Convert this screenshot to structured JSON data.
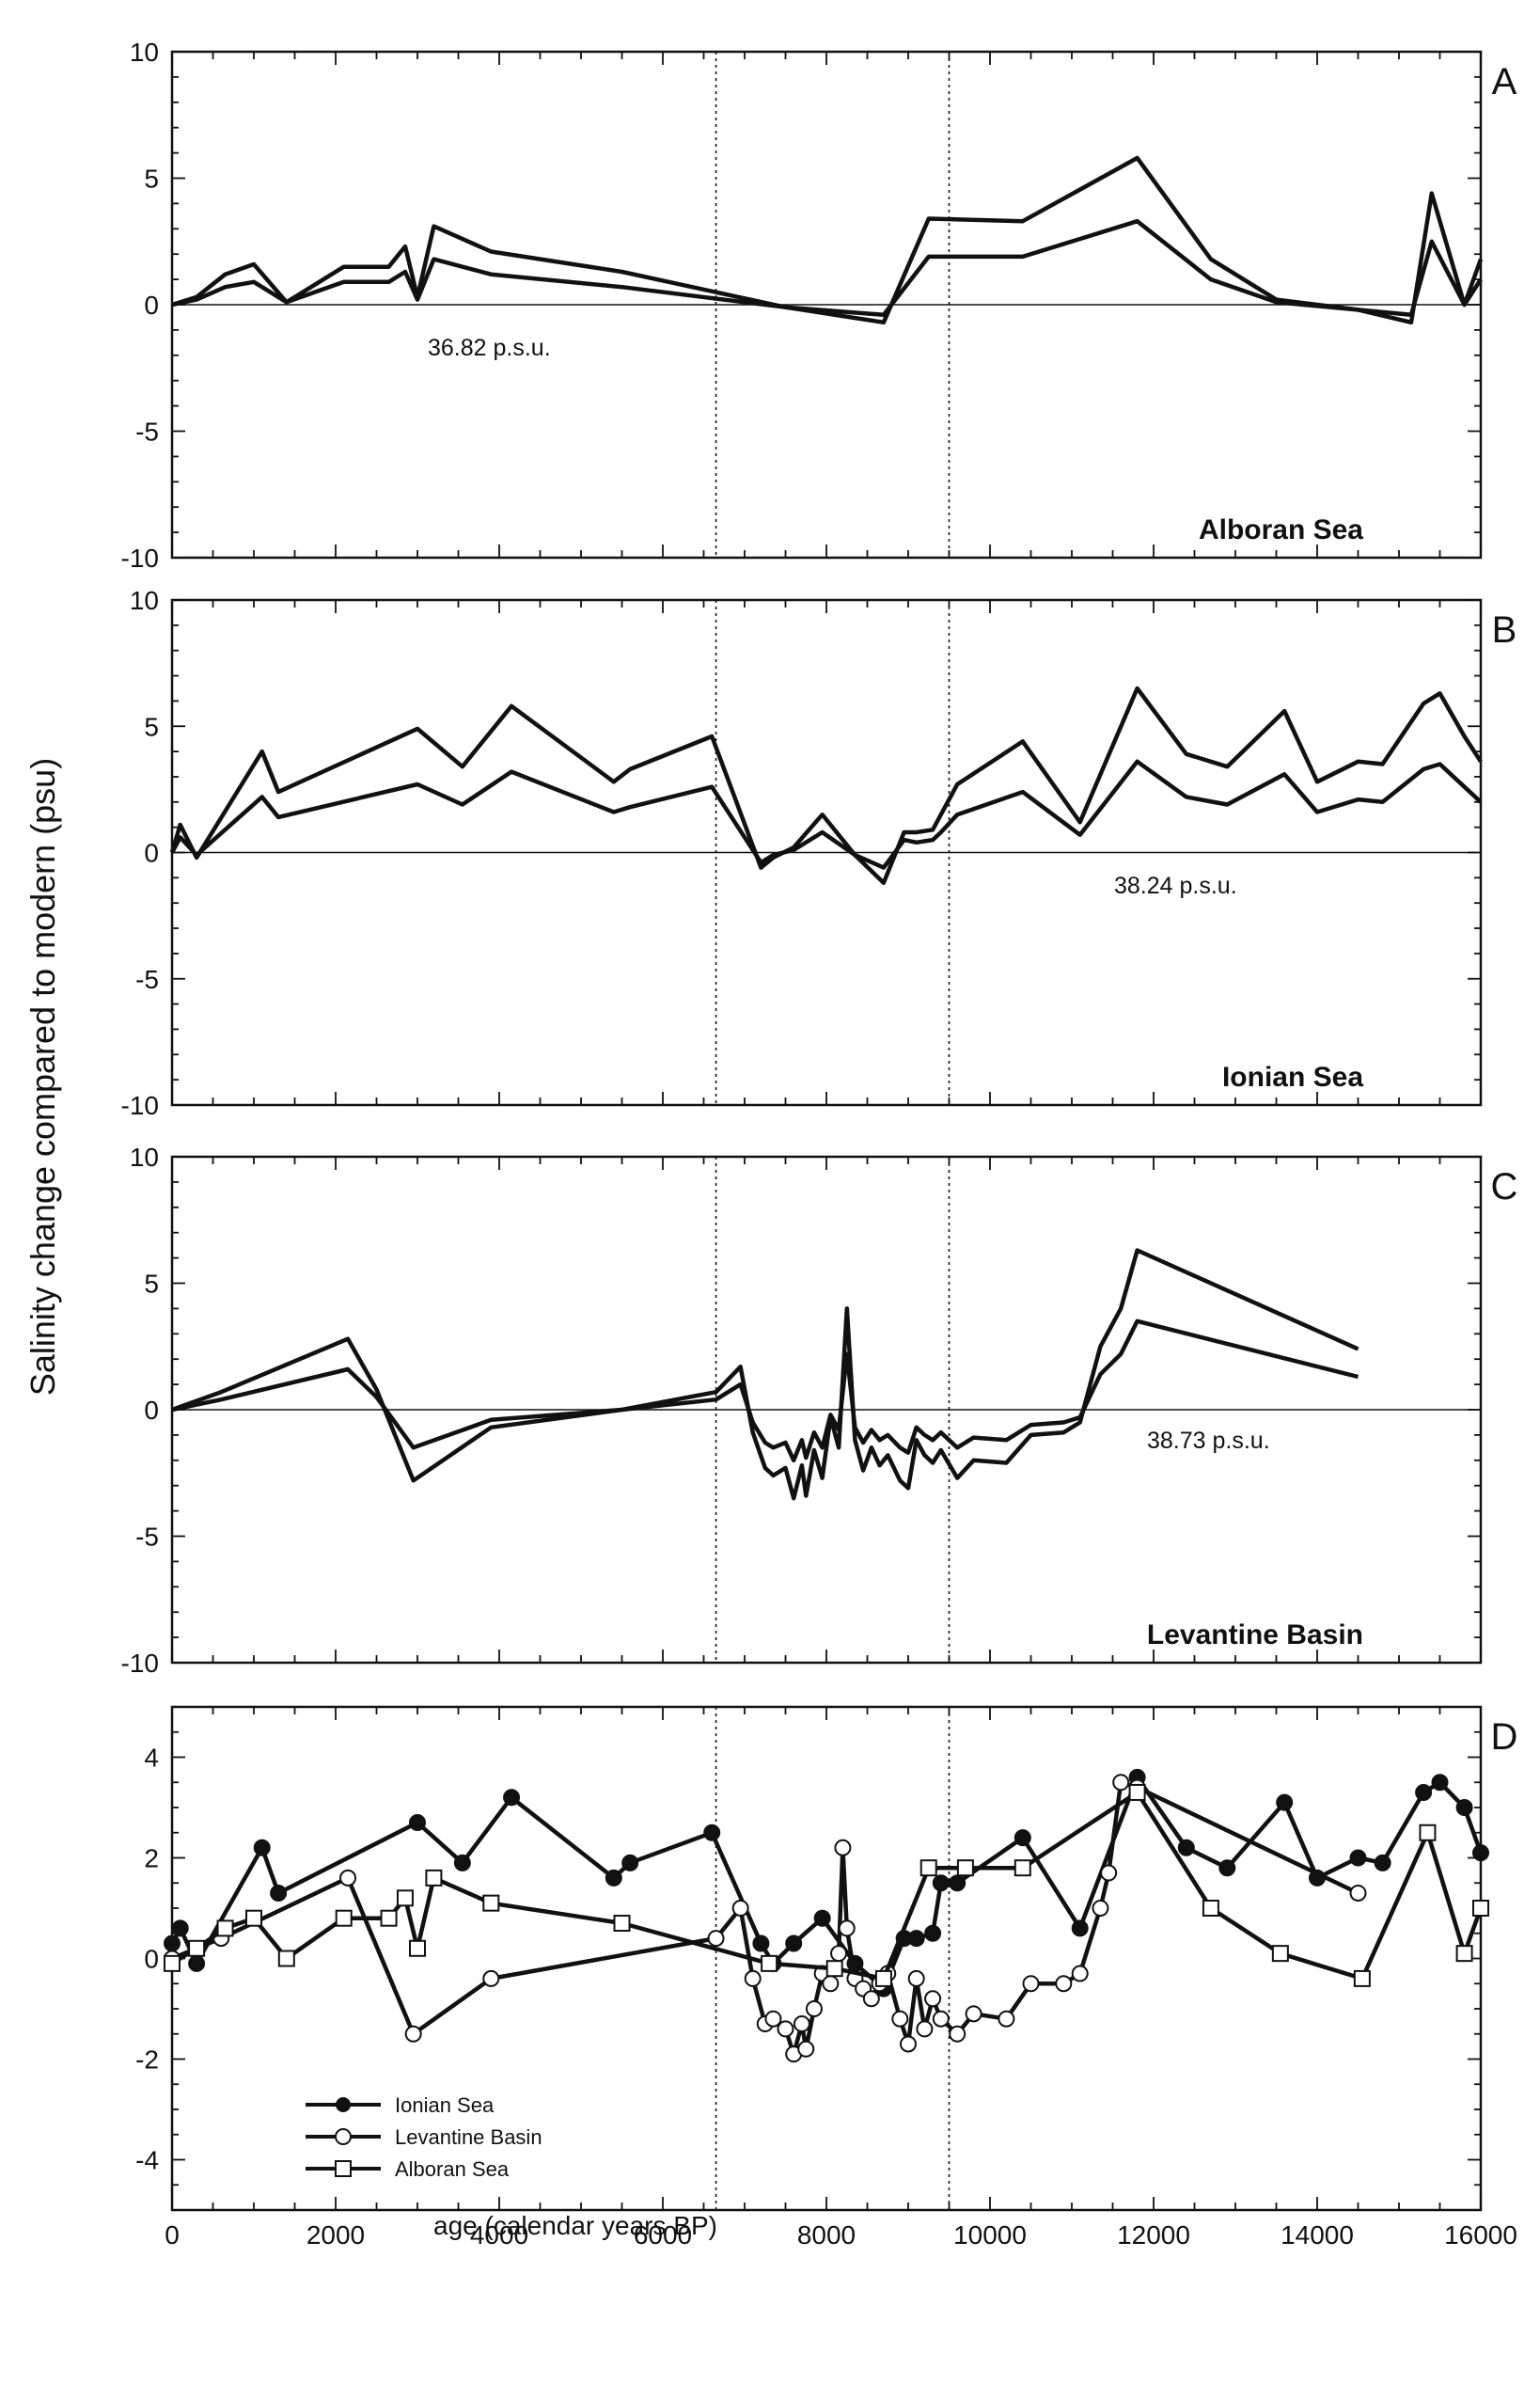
{
  "figure": {
    "ylabel": "Salinity change compared to modern (psu)",
    "xlabel": "age (calendar years BP)"
  },
  "colors": {
    "line": "#111111",
    "background": "#ffffff"
  },
  "chart_data": [
    {
      "type": "line",
      "panel_letter": "A",
      "region_label": "Alboran Sea",
      "annotation": "36.82 p.s.u.",
      "xlim": [
        0,
        16000
      ],
      "ylim": [
        -10,
        10
      ],
      "yticks": [
        10,
        5,
        0,
        -5,
        -10
      ],
      "xticks": [
        0,
        2000,
        4000,
        6000,
        8000,
        10000,
        12000,
        14000,
        16000
      ],
      "show_xtick_labels": false,
      "zero_line": true,
      "vlines": [
        6650,
        9500
      ],
      "series": [
        {
          "x": [
            0,
            300,
            650,
            1000,
            1400,
            2100,
            2650,
            2850,
            3000,
            3200,
            3900,
            5500,
            7500,
            8700,
            9250,
            10400,
            11800,
            12700,
            13500,
            14500,
            15150,
            15400,
            15800,
            16000
          ],
          "y": [
            0,
            0.3,
            1.2,
            1.6,
            0.1,
            1.5,
            1.5,
            2.3,
            0.3,
            3.1,
            2.1,
            1.3,
            -0.1,
            -0.7,
            3.4,
            3.3,
            5.8,
            1.8,
            0.2,
            -0.2,
            -0.7,
            4.4,
            0,
            1.8
          ]
        },
        {
          "x": [
            0,
            300,
            650,
            1000,
            1400,
            2100,
            2650,
            2850,
            3000,
            3200,
            3900,
            5500,
            7500,
            8700,
            9250,
            10400,
            11800,
            12700,
            13500,
            14500,
            15150,
            15400,
            15800,
            16000
          ],
          "y": [
            0,
            0.2,
            0.7,
            0.9,
            0.1,
            0.9,
            0.9,
            1.3,
            0.2,
            1.8,
            1.2,
            0.7,
            -0.1,
            -0.4,
            1.9,
            1.9,
            3.3,
            1.0,
            0.1,
            -0.2,
            -0.4,
            2.5,
            0,
            1.0
          ]
        }
      ]
    },
    {
      "type": "line",
      "panel_letter": "B",
      "region_label": "Ionian Sea",
      "annotation": "38.24 p.s.u.",
      "xlim": [
        0,
        16000
      ],
      "ylim": [
        -10,
        10
      ],
      "yticks": [
        10,
        5,
        0,
        -5,
        -10
      ],
      "xticks": [
        0,
        2000,
        4000,
        6000,
        8000,
        10000,
        12000,
        14000,
        16000
      ],
      "show_xtick_labels": false,
      "zero_line": true,
      "vlines": [
        6650,
        9500
      ],
      "series": [
        {
          "x": [
            0,
            100,
            300,
            1100,
            1300,
            3000,
            3550,
            4150,
            5400,
            5600,
            6600,
            7200,
            7350,
            7600,
            7950,
            8350,
            8700,
            8950,
            9100,
            9300,
            9400,
            9600,
            10400,
            11100,
            11800,
            12400,
            12900,
            13600,
            14000,
            14500,
            14800,
            15300,
            15500,
            15800,
            16000
          ],
          "y": [
            0,
            1.1,
            -0.2,
            4.0,
            2.4,
            4.9,
            3.4,
            5.8,
            2.8,
            3.3,
            4.6,
            -0.6,
            -0.2,
            0.2,
            1.5,
            -0.1,
            -1.2,
            0.8,
            0.8,
            0.9,
            1.5,
            2.7,
            4.4,
            1.2,
            6.5,
            3.9,
            3.4,
            5.6,
            2.8,
            3.6,
            3.5,
            5.9,
            6.3,
            4.6,
            3.6
          ]
        },
        {
          "x": [
            0,
            100,
            300,
            1100,
            1300,
            3000,
            3550,
            4150,
            5400,
            5600,
            6600,
            7200,
            7350,
            7600,
            7950,
            8350,
            8700,
            8950,
            9100,
            9300,
            9400,
            9600,
            10400,
            11100,
            11800,
            12400,
            12900,
            13600,
            14000,
            14500,
            14800,
            15300,
            15500,
            15800,
            16000
          ],
          "y": [
            0,
            0.6,
            -0.1,
            2.2,
            1.4,
            2.7,
            1.9,
            3.2,
            1.6,
            1.8,
            2.6,
            -0.4,
            -0.1,
            0.1,
            0.8,
            -0.1,
            -0.6,
            0.5,
            0.4,
            0.5,
            0.8,
            1.5,
            2.4,
            0.7,
            3.6,
            2.2,
            1.9,
            3.1,
            1.6,
            2.1,
            2.0,
            3.3,
            3.5,
            2.6,
            2.0
          ]
        }
      ]
    },
    {
      "type": "line",
      "panel_letter": "C",
      "region_label": "Levantine Basin",
      "annotation": "38.73 p.s.u.",
      "xlim": [
        0,
        16000
      ],
      "ylim": [
        -10,
        10
      ],
      "yticks": [
        10,
        5,
        0,
        -5,
        -10
      ],
      "xticks": [
        0,
        2000,
        4000,
        6000,
        8000,
        10000,
        12000,
        14000,
        16000
      ],
      "show_xtick_labels": false,
      "zero_line": true,
      "vlines": [
        6650,
        9500
      ],
      "series": [
        {
          "x": [
            0,
            600,
            2150,
            2500,
            2950,
            3900,
            5500,
            6650,
            6950,
            7100,
            7250,
            7350,
            7500,
            7600,
            7700,
            7750,
            7850,
            7950,
            8050,
            8150,
            8200,
            8250,
            8350,
            8450,
            8550,
            8650,
            8750,
            8900,
            9000,
            9100,
            9200,
            9300,
            9400,
            9600,
            9800,
            10200,
            10500,
            10900,
            11100,
            11350,
            11600,
            11800,
            14500
          ],
          "y": [
            0,
            0.7,
            2.8,
            0.8,
            -2.8,
            -0.7,
            0,
            0.7,
            1.7,
            -0.9,
            -2.3,
            -2.6,
            -2.3,
            -3.5,
            -2.2,
            -3.4,
            -1.6,
            -2.7,
            -0.3,
            -1.5,
            1.2,
            4.0,
            -1.2,
            -2.4,
            -1.5,
            -2.2,
            -1.8,
            -2.8,
            -3.1,
            -1.2,
            -1.8,
            -2.1,
            -1.6,
            -2.7,
            -2.0,
            -2.1,
            -1.0,
            -0.9,
            -0.5,
            2.5,
            4.0,
            6.3,
            2.4
          ]
        },
        {
          "x": [
            0,
            600,
            2150,
            2500,
            2950,
            3900,
            5500,
            6650,
            6950,
            7100,
            7250,
            7350,
            7500,
            7600,
            7700,
            7750,
            7850,
            7950,
            8050,
            8150,
            8200,
            8250,
            8350,
            8450,
            8550,
            8650,
            8750,
            8900,
            9000,
            9100,
            9200,
            9300,
            9400,
            9600,
            9800,
            10200,
            10500,
            10900,
            11100,
            11350,
            11600,
            11800,
            14500
          ],
          "y": [
            0,
            0.4,
            1.6,
            0.5,
            -1.5,
            -0.4,
            0,
            0.4,
            1.0,
            -0.5,
            -1.3,
            -1.5,
            -1.3,
            -2.0,
            -1.2,
            -1.9,
            -0.9,
            -1.5,
            -0.2,
            -0.8,
            0.7,
            2.2,
            -0.7,
            -1.3,
            -0.8,
            -1.2,
            -1.0,
            -1.5,
            -1.7,
            -0.7,
            -1.0,
            -1.2,
            -0.9,
            -1.5,
            -1.1,
            -1.2,
            -0.6,
            -0.5,
            -0.3,
            1.4,
            2.2,
            3.5,
            1.3
          ]
        }
      ]
    },
    {
      "type": "line",
      "panel_letter": "D",
      "xlim": [
        0,
        16000
      ],
      "ylim": [
        -5,
        5
      ],
      "yticks": [
        4,
        2,
        0,
        -2,
        -4
      ],
      "xticks": [
        0,
        2000,
        4000,
        6000,
        8000,
        10000,
        12000,
        14000,
        16000
      ],
      "xtick_labels": [
        "0",
        "2000",
        "4000",
        "6000",
        "8000",
        "10000",
        "12000",
        "14000",
        "16000"
      ],
      "show_xtick_labels": true,
      "zero_line": false,
      "vlines": [
        6650,
        9500
      ],
      "series": [
        {
          "name": "Ionian Sea",
          "marker": "filled-circle",
          "x": [
            0,
            100,
            300,
            1100,
            1300,
            3000,
            3550,
            4150,
            5400,
            5600,
            6600,
            7200,
            7350,
            7600,
            7950,
            8350,
            8700,
            8950,
            9100,
            9300,
            9400,
            9600,
            10400,
            11100,
            11800,
            12400,
            12900,
            13600,
            14000,
            14500,
            14800,
            15300,
            15500,
            15800,
            16000
          ],
          "y": [
            0.3,
            0.6,
            -0.1,
            2.2,
            1.3,
            2.7,
            1.9,
            3.2,
            1.6,
            1.9,
            2.5,
            0.3,
            -0.1,
            0.3,
            0.8,
            -0.1,
            -0.6,
            0.4,
            0.4,
            0.5,
            1.5,
            1.5,
            2.4,
            0.6,
            3.6,
            2.2,
            1.8,
            3.1,
            1.6,
            2.0,
            1.9,
            3.3,
            3.5,
            3.0,
            2.1
          ]
        },
        {
          "name": "Levantine Basin",
          "marker": "open-circle",
          "x": [
            0,
            600,
            2150,
            2950,
            3900,
            6650,
            6950,
            7100,
            7250,
            7350,
            7500,
            7600,
            7700,
            7750,
            7850,
            7950,
            8050,
            8150,
            8200,
            8250,
            8350,
            8450,
            8550,
            8650,
            8750,
            8900,
            9000,
            9100,
            9200,
            9300,
            9400,
            9600,
            9800,
            10200,
            10500,
            10900,
            11100,
            11350,
            11450,
            11600,
            11800,
            14500
          ],
          "y": [
            0,
            0.4,
            1.6,
            -1.5,
            -0.4,
            0.4,
            1.0,
            -0.4,
            -1.3,
            -1.2,
            -1.4,
            -1.9,
            -1.3,
            -1.8,
            -1.0,
            -0.3,
            -0.5,
            0.1,
            2.2,
            0.6,
            -0.4,
            -0.6,
            -0.8,
            -0.5,
            -0.3,
            -1.2,
            -1.7,
            -0.4,
            -1.4,
            -0.8,
            -1.2,
            -1.5,
            -1.1,
            -1.2,
            -0.5,
            -0.5,
            -0.3,
            1.0,
            1.7,
            3.5,
            3.4,
            1.3
          ]
        },
        {
          "name": "Alboran Sea",
          "marker": "open-square",
          "x": [
            0,
            300,
            650,
            1000,
            1400,
            2100,
            2650,
            2850,
            3000,
            3200,
            3900,
            5500,
            7300,
            8100,
            8700,
            9250,
            9700,
            10400,
            11800,
            12700,
            13550,
            14550,
            15350,
            15800,
            16000
          ],
          "y": [
            -0.1,
            0.2,
            0.6,
            0.8,
            0,
            0.8,
            0.8,
            1.2,
            0.2,
            1.6,
            1.1,
            0.7,
            -0.1,
            -0.2,
            -0.4,
            1.8,
            1.8,
            1.8,
            3.3,
            1.0,
            0.1,
            -0.4,
            2.5,
            0.1,
            1.0
          ]
        }
      ]
    }
  ]
}
